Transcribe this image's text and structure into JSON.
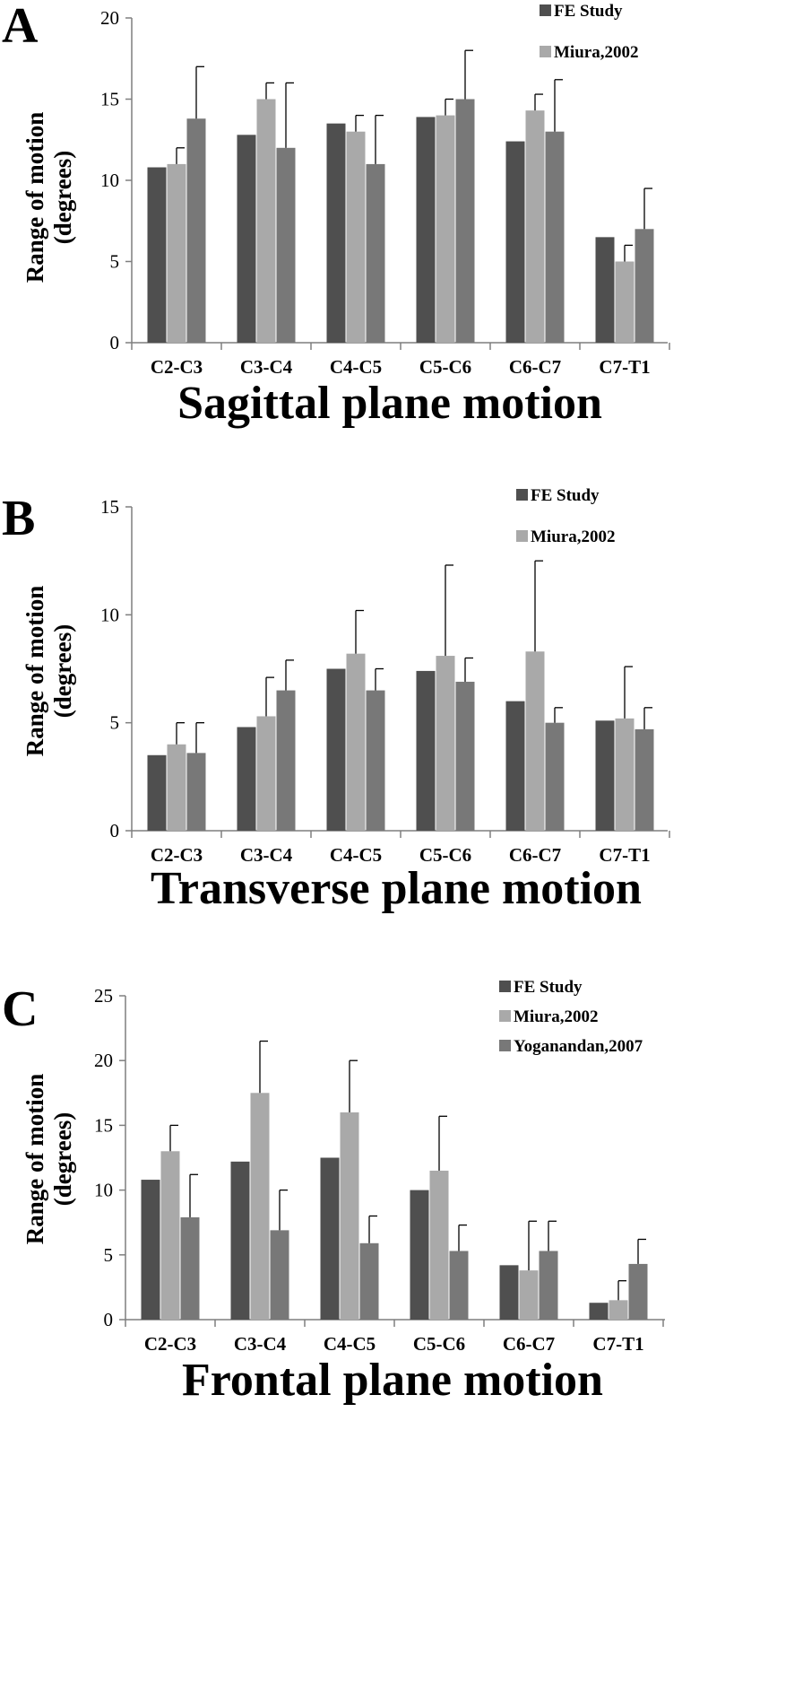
{
  "colors": {
    "FE Study": "#4f4f4f",
    "Miura,2002": "#a9a9a9",
    "Yoganandan,2007": "#787878"
  },
  "chart_data": [
    {
      "type": "bar",
      "panel": "A",
      "xlabel": "Sagittal plane motion",
      "ylabel": [
        "Range of motion",
        "(degrees)"
      ],
      "ylim": [
        0,
        20
      ],
      "yticks": [
        0,
        5,
        10,
        15,
        20
      ],
      "categories": [
        "C2-C3",
        "C3-C4",
        "C4-C5",
        "C5-C6",
        "C6-C7",
        "C7-T1"
      ],
      "legend": [
        "FE Study",
        "Miura,2002"
      ],
      "legend_placement": "top-right",
      "grid": false,
      "series": [
        {
          "name": "FE Study",
          "values": [
            10.8,
            12.8,
            13.5,
            13.9,
            12.4,
            6.5
          ],
          "errors": null
        },
        {
          "name": "Miura,2002",
          "values": [
            11.0,
            15.0,
            13.0,
            14.0,
            14.3,
            5.0
          ],
          "errors": [
            1.0,
            1.0,
            1.0,
            1.0,
            1.0,
            1.0
          ]
        },
        {
          "values": [
            13.8,
            12.0,
            11.0,
            15.0,
            13.0,
            7.0
          ],
          "errors": [
            3.2,
            4.0,
            3.0,
            3.0,
            3.2,
            2.5
          ]
        }
      ]
    },
    {
      "type": "bar",
      "panel": "B",
      "xlabel": "Transverse plane motion",
      "ylabel": [
        "Range of motion",
        "(degrees)"
      ],
      "ylim": [
        0,
        15
      ],
      "yticks": [
        0,
        5,
        10,
        15
      ],
      "categories": [
        "C2-C3",
        "C3-C4",
        "C4-C5",
        "C5-C6",
        "C6-C7",
        "C7-T1"
      ],
      "legend": [
        "FE Study",
        "Miura,2002"
      ],
      "legend_placement": "top-right",
      "grid": false,
      "series": [
        {
          "name": "FE Study",
          "values": [
            3.5,
            4.8,
            7.5,
            7.4,
            6.0,
            5.1
          ],
          "errors": null
        },
        {
          "name": "Miura,2002",
          "values": [
            4.0,
            5.3,
            8.2,
            8.1,
            8.3,
            5.2
          ],
          "errors": [
            1.0,
            1.8,
            2.0,
            4.2,
            4.2,
            2.4
          ]
        },
        {
          "values": [
            3.6,
            6.5,
            6.5,
            6.9,
            5.0,
            4.7
          ],
          "errors": [
            1.4,
            1.4,
            1.0,
            1.1,
            0.7,
            1.0
          ]
        }
      ]
    },
    {
      "type": "bar",
      "panel": "C",
      "xlabel": "Frontal plane motion",
      "ylabel": [
        "Range of motion",
        "(degrees)"
      ],
      "ylim": [
        0,
        25
      ],
      "yticks": [
        0,
        5,
        10,
        15,
        20,
        25
      ],
      "categories": [
        "C2-C3",
        "C3-C4",
        "C4-C5",
        "C5-C6",
        "C6-C7",
        "C7-T1"
      ],
      "legend": [
        "FE Study",
        "Miura,2002",
        "Yoganandan,2007"
      ],
      "legend_placement": "top-right",
      "grid": false,
      "series": [
        {
          "name": "FE Study",
          "values": [
            10.8,
            12.2,
            12.5,
            10.0,
            4.2,
            1.3
          ],
          "errors": null
        },
        {
          "name": "Miura,2002",
          "values": [
            13.0,
            17.5,
            16.0,
            11.5,
            3.8,
            1.5
          ],
          "errors": [
            2.0,
            4.0,
            4.0,
            4.2,
            3.8,
            1.5
          ]
        },
        {
          "name": "Yoganandan,2007",
          "values": [
            7.9,
            6.9,
            5.9,
            5.3,
            5.3,
            4.3
          ],
          "errors": [
            3.3,
            3.1,
            2.1,
            2.0,
            2.3,
            1.9
          ]
        }
      ]
    }
  ]
}
